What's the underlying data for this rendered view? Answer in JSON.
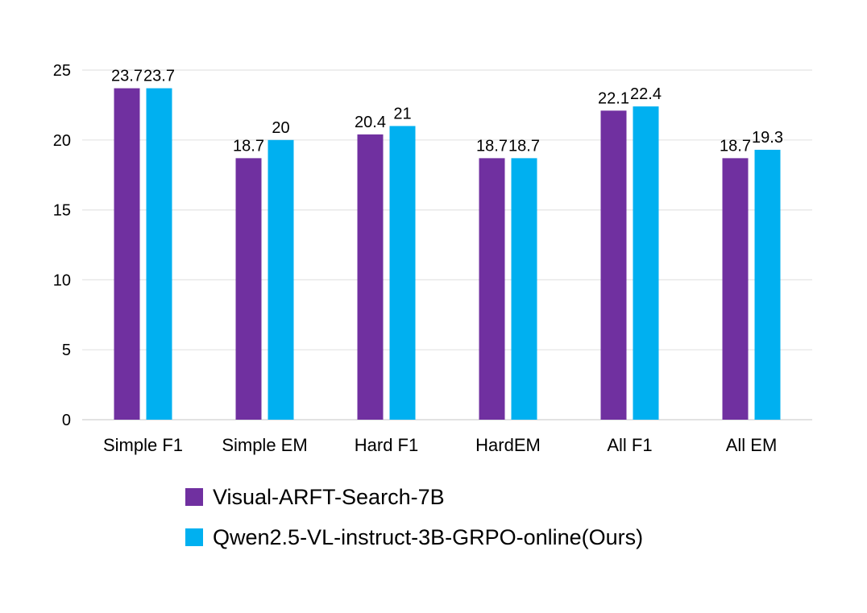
{
  "chart_data": {
    "type": "bar",
    "categories": [
      "Simple F1",
      "Simple EM",
      "Hard F1",
      "HardEM",
      "All F1",
      "All EM"
    ],
    "series": [
      {
        "name": "Visual-ARFT-Search-7B",
        "values": [
          23.7,
          18.7,
          20.4,
          18.7,
          22.1,
          18.7
        ],
        "color": "#7030a0"
      },
      {
        "name": "Qwen2.5-VL-instruct-3B-GRPO-online(Ours)",
        "values": [
          23.7,
          20,
          21,
          18.7,
          22.4,
          19.3
        ],
        "color": "#00b0f0"
      }
    ],
    "ylim": [
      0,
      25
    ],
    "yticks": [
      0,
      5,
      10,
      15,
      20,
      25
    ],
    "grid": true,
    "legend_position": "bottom",
    "data_labels": true
  }
}
